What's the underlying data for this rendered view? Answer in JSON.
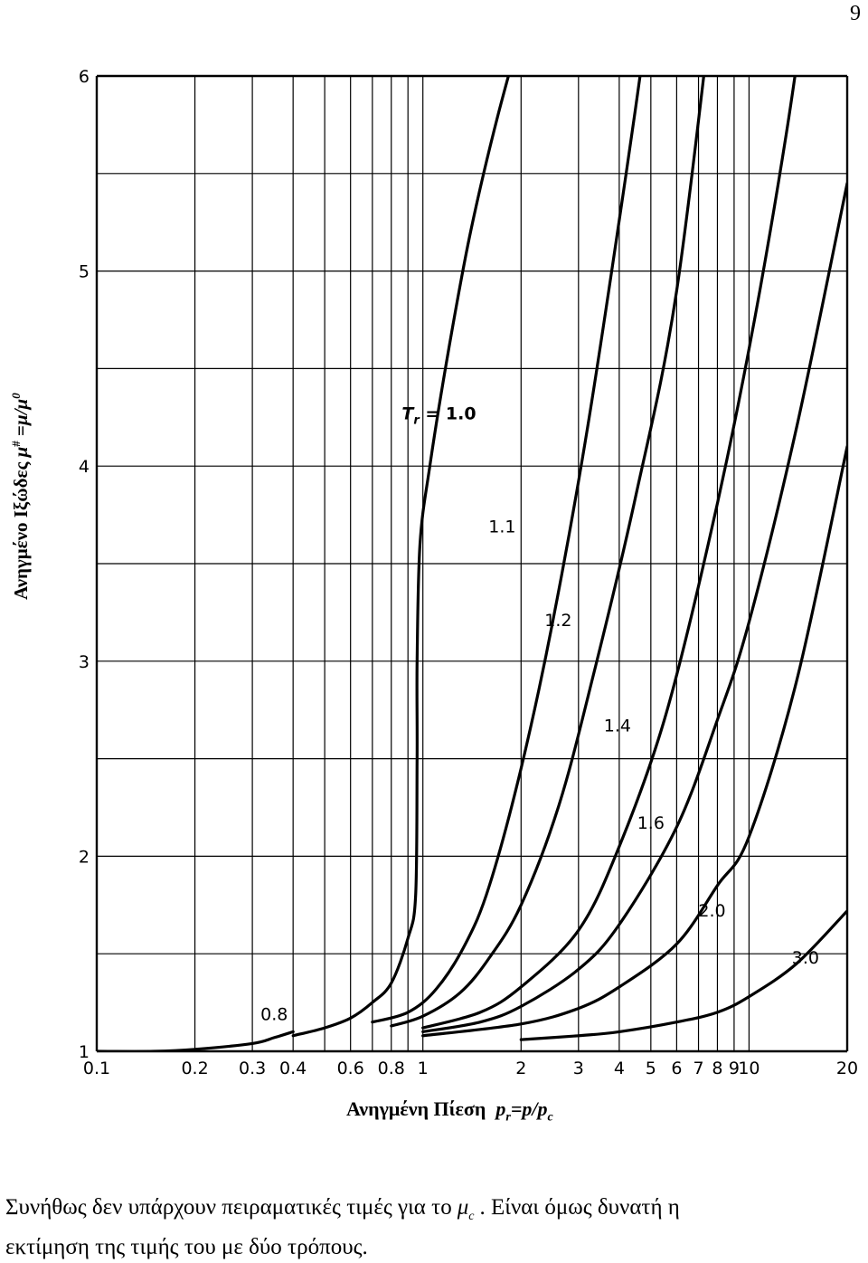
{
  "page": {
    "number": "9"
  },
  "chart_data": {
    "type": "line",
    "x_scale": "log",
    "y_scale": "linear",
    "xlim": [
      0.1,
      20
    ],
    "ylim": [
      1,
      6
    ],
    "grid": true,
    "xlabel": {
      "text": "Ανηγμένη Πίεση",
      "symbol": "p",
      "sub1": "r",
      "mid": "=p/p",
      "sub2": "c"
    },
    "ylabel": "Ανηγμένο Ιξώδες μ# =μ/μ0",
    "x_ticks": [
      0.1,
      0.2,
      0.3,
      0.4,
      0.6,
      0.8,
      1,
      2,
      3,
      4,
      5,
      6,
      7,
      8,
      9,
      10,
      20
    ],
    "x_tick_labels": [
      "0.1",
      "0.2",
      "0.3",
      "0.4",
      "0.6",
      "0.8",
      "1",
      "2",
      "3",
      "4",
      "5",
      "6",
      "7",
      "8",
      "9",
      "10",
      "20"
    ],
    "x_grid": [
      0.1,
      0.2,
      0.3,
      0.4,
      0.5,
      0.6,
      0.7,
      0.8,
      0.9,
      1,
      2,
      3,
      4,
      5,
      6,
      7,
      8,
      9,
      10,
      20
    ],
    "y_ticks": [
      1,
      2,
      3,
      4,
      5,
      6
    ],
    "y_tick_labels": [
      "1",
      "2",
      "3",
      "4",
      "5",
      "6"
    ],
    "y_grid": [
      1,
      1.5,
      2,
      2.5,
      3,
      3.5,
      4,
      4.5,
      5,
      5.5,
      6
    ],
    "series": [
      {
        "name": "0.8",
        "label": "0.8",
        "points": [
          [
            0.1,
            1.0
          ],
          [
            0.15,
            1.0
          ],
          [
            0.2,
            1.01
          ],
          [
            0.3,
            1.04
          ],
          [
            0.35,
            1.07
          ],
          [
            0.4,
            1.1
          ]
        ]
      },
      {
        "name": "1.0",
        "label": "Tr = 1.0",
        "points": [
          [
            0.4,
            1.08
          ],
          [
            0.5,
            1.12
          ],
          [
            0.6,
            1.17
          ],
          [
            0.7,
            1.25
          ],
          [
            0.8,
            1.35
          ],
          [
            0.9,
            1.58
          ],
          [
            0.95,
            1.8
          ],
          [
            0.96,
            2.5
          ],
          [
            0.96,
            3.0
          ],
          [
            0.98,
            3.6
          ],
          [
            1.05,
            4.0
          ],
          [
            1.2,
            4.6
          ],
          [
            1.4,
            5.2
          ],
          [
            1.7,
            5.8
          ],
          [
            2.3,
            6.6
          ]
        ]
      },
      {
        "name": "1.1",
        "label": "1.1",
        "points": [
          [
            0.7,
            1.15
          ],
          [
            0.9,
            1.2
          ],
          [
            1.1,
            1.32
          ],
          [
            1.35,
            1.55
          ],
          [
            1.6,
            1.85
          ],
          [
            2.0,
            2.45
          ],
          [
            2.5,
            3.2
          ],
          [
            3.2,
            4.2
          ],
          [
            4.2,
            5.5
          ],
          [
            5.2,
            6.6
          ]
        ]
      },
      {
        "name": "1.2",
        "label": "1.2",
        "points": [
          [
            0.8,
            1.13
          ],
          [
            1.0,
            1.18
          ],
          [
            1.3,
            1.3
          ],
          [
            1.6,
            1.48
          ],
          [
            2.0,
            1.75
          ],
          [
            2.6,
            2.25
          ],
          [
            3.3,
            2.9
          ],
          [
            4.5,
            3.85
          ],
          [
            6.0,
            4.9
          ],
          [
            8.0,
            6.6
          ]
        ]
      },
      {
        "name": "1.4",
        "label": "1.4",
        "points": [
          [
            1.0,
            1.12
          ],
          [
            1.5,
            1.2
          ],
          [
            2.0,
            1.33
          ],
          [
            3.0,
            1.62
          ],
          [
            4.0,
            2.05
          ],
          [
            5.5,
            2.7
          ],
          [
            7.5,
            3.6
          ],
          [
            10.0,
            4.6
          ],
          [
            13.0,
            5.7
          ],
          [
            15.5,
            6.6
          ]
        ]
      },
      {
        "name": "1.6",
        "label": "1.6",
        "points": [
          [
            1.0,
            1.1
          ],
          [
            1.5,
            1.15
          ],
          [
            2.0,
            1.23
          ],
          [
            3.0,
            1.42
          ],
          [
            4.0,
            1.65
          ],
          [
            6.0,
            2.15
          ],
          [
            8.0,
            2.7
          ],
          [
            10.0,
            3.2
          ],
          [
            14.0,
            4.2
          ],
          [
            20.0,
            5.45
          ]
        ]
      },
      {
        "name": "2.0",
        "label": "2.0",
        "points": [
          [
            1.0,
            1.08
          ],
          [
            2.0,
            1.14
          ],
          [
            3.0,
            1.22
          ],
          [
            4.0,
            1.33
          ],
          [
            6.0,
            1.55
          ],
          [
            8.0,
            1.85
          ],
          [
            10.0,
            2.1
          ],
          [
            14.0,
            2.9
          ],
          [
            20.0,
            4.1
          ]
        ]
      },
      {
        "name": "3.0",
        "label": "3.0",
        "points": [
          [
            2.0,
            1.06
          ],
          [
            3.0,
            1.08
          ],
          [
            4.0,
            1.1
          ],
          [
            6.0,
            1.15
          ],
          [
            8.0,
            1.2
          ],
          [
            10.0,
            1.28
          ],
          [
            14.0,
            1.45
          ],
          [
            20.0,
            1.72
          ]
        ]
      }
    ]
  },
  "caption": {
    "line1_before": "Συνήθως δεν υπάρχουν πειραματικές τιμές για το",
    "mu": "μ",
    "mu_sub": "c",
    "line1_after": ". Είναι όμως δυνατή η",
    "line2": "εκτίμηση της τιμής του με δύο τρόπους."
  }
}
